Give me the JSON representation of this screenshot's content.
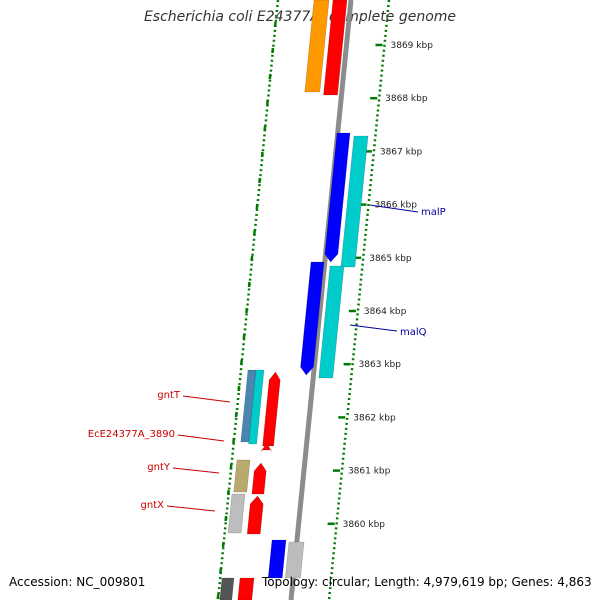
{
  "title": "Escherichia coli E24377A, complete genome",
  "footer": {
    "accession": "Accession: NC_009801",
    "info": "Topology: circular; Length: 4,979,619 bp; Genes: 4,863"
  },
  "colors": {
    "backbone": "#8c8c8c",
    "tick": "#007a00",
    "red": "#ff0000",
    "blue": "#0000ff",
    "cyan": "#00cccc",
    "orange": "#ff9900",
    "steel": "#4a86b0",
    "khaki": "#b8aa6c",
    "grey": "#bdbdbd",
    "dark": "#555555",
    "right_label": "#000099",
    "left_label": "#cc0000"
  },
  "ticks": [
    {
      "label": "3869 kbp",
      "kbp": 3869
    },
    {
      "label": "3868 kbp",
      "kbp": 3868
    },
    {
      "label": "3867 kbp",
      "kbp": 3867
    },
    {
      "label": "3866 kbp",
      "kbp": 3866
    },
    {
      "label": "3865 kbp",
      "kbp": 3865
    },
    {
      "label": "3864 kbp",
      "kbp": 3864
    },
    {
      "label": "3863 kbp",
      "kbp": 3863
    },
    {
      "label": "3862 kbp",
      "kbp": 3862
    },
    {
      "label": "3861 kbp",
      "kbp": 3861
    },
    {
      "label": "3860 kbp",
      "kbp": 3860
    }
  ],
  "gene_labels_right": [
    {
      "name": "malP",
      "gene": "malP"
    },
    {
      "name": "malQ",
      "gene": "malQ"
    }
  ],
  "gene_labels_left": [
    {
      "name": "gntT",
      "gene": "gntT"
    },
    {
      "name": "EcE24377A_3890",
      "gene": "EcE24377A_3890"
    },
    {
      "name": "gntY",
      "gene": "gntY"
    },
    {
      "name": "gntX",
      "gene": "gntX"
    }
  ]
}
